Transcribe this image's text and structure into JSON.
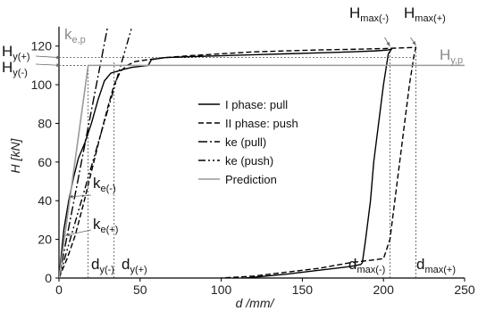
{
  "chart_data": {
    "type": "line",
    "xlabel": "d /mm/",
    "ylabel": "H [kN]",
    "xlim": [
      0,
      250
    ],
    "ylim": [
      0,
      130
    ],
    "x_ticks": [
      "0",
      "50",
      "100",
      "150",
      "200",
      "250"
    ],
    "y_ticks": [
      "0",
      "20",
      "40",
      "60",
      "80",
      "100",
      "120"
    ],
    "grid": false,
    "legend": {
      "placement": "center",
      "entries": [
        "I phase: pull",
        "II phase: push",
        "ke (pull)",
        "ke (push)",
        "Prediction"
      ]
    },
    "series": [
      {
        "name": "I phase: pull",
        "style": "solid",
        "color": "#000000",
        "x": [
          0,
          3,
          6,
          9,
          12,
          16,
          20,
          24,
          28,
          32,
          36,
          40,
          45,
          55,
          57,
          65,
          80,
          100,
          120,
          140,
          160,
          180,
          195,
          203,
          205,
          203,
          200,
          197,
          194,
          192,
          189,
          187,
          186,
          180,
          160,
          140,
          115
        ],
        "y": [
          0,
          25,
          40,
          52,
          62,
          70,
          80,
          92,
          102,
          106,
          107,
          108,
          109,
          110,
          113,
          114,
          114.5,
          115,
          115.5,
          116,
          116.5,
          117,
          117.5,
          118,
          118.5,
          116,
          100,
          80,
          60,
          40,
          20,
          8,
          7,
          6,
          4,
          2,
          0
        ]
      },
      {
        "name": "II phase: push",
        "style": "dashed",
        "color": "#000000",
        "x": [
          0,
          5,
          10,
          15,
          20,
          25,
          30,
          34,
          38,
          42,
          47,
          55,
          65,
          80,
          100,
          120,
          140,
          160,
          180,
          200,
          210,
          220,
          219,
          216,
          213,
          210,
          207,
          204,
          200,
          180,
          160,
          140,
          120,
          100
        ],
        "y": [
          0,
          10,
          22,
          38,
          55,
          72,
          88,
          100,
          107,
          110,
          112,
          113,
          114,
          115,
          116,
          117,
          117.5,
          118,
          118.3,
          118.7,
          119,
          119.3,
          116,
          100,
          80,
          60,
          40,
          20,
          10,
          8,
          5,
          3,
          1,
          0
        ]
      },
      {
        "name": "ke (pull)",
        "style": "dashdot",
        "color": "#000000",
        "x": [
          0,
          30
        ],
        "y": [
          0,
          130
        ]
      },
      {
        "name": "ke (push)",
        "style": "dashdotdot",
        "color": "#000000",
        "x": [
          0,
          45
        ],
        "y": [
          0,
          130
        ]
      },
      {
        "name": "Prediction",
        "style": "solid",
        "color": "#9a9a9a",
        "x": [
          0,
          18,
          250
        ],
        "y": [
          0,
          110,
          110
        ]
      }
    ],
    "annotations": {
      "ke_p": {
        "main": "k",
        "sub": "e,p"
      },
      "hy_p": {
        "main": "H",
        "sub": "y,p"
      },
      "hy_plus": {
        "main": "H",
        "sub": "y(+)"
      },
      "hy_minus": {
        "main": "H",
        "sub": "y(-)"
      },
      "hmax_minus": {
        "main": "H",
        "sub": "max(-)"
      },
      "hmax_plus": {
        "main": "H",
        "sub": "max(+)"
      },
      "ke_minus": {
        "main": "k",
        "sub": "e(-)"
      },
      "ke_plus": {
        "main": "k",
        "sub": "e(+)"
      },
      "dy_minus": {
        "main": "d",
        "sub": "y(-)"
      },
      "dy_plus": {
        "main": "d",
        "sub": "y(+)"
      },
      "dmax_minus": {
        "main": "d",
        "sub": "max(-)"
      },
      "dmax_plus": {
        "main": "d",
        "sub": "max(+)"
      }
    },
    "reference_values": {
      "hy_plus": 114,
      "hy_minus": 110,
      "dy_minus": 18,
      "dy_plus": 34,
      "dmax_minus": 204,
      "dmax_plus": 220,
      "hmax_minus": 118.5,
      "hmax_plus": 119.3
    }
  }
}
